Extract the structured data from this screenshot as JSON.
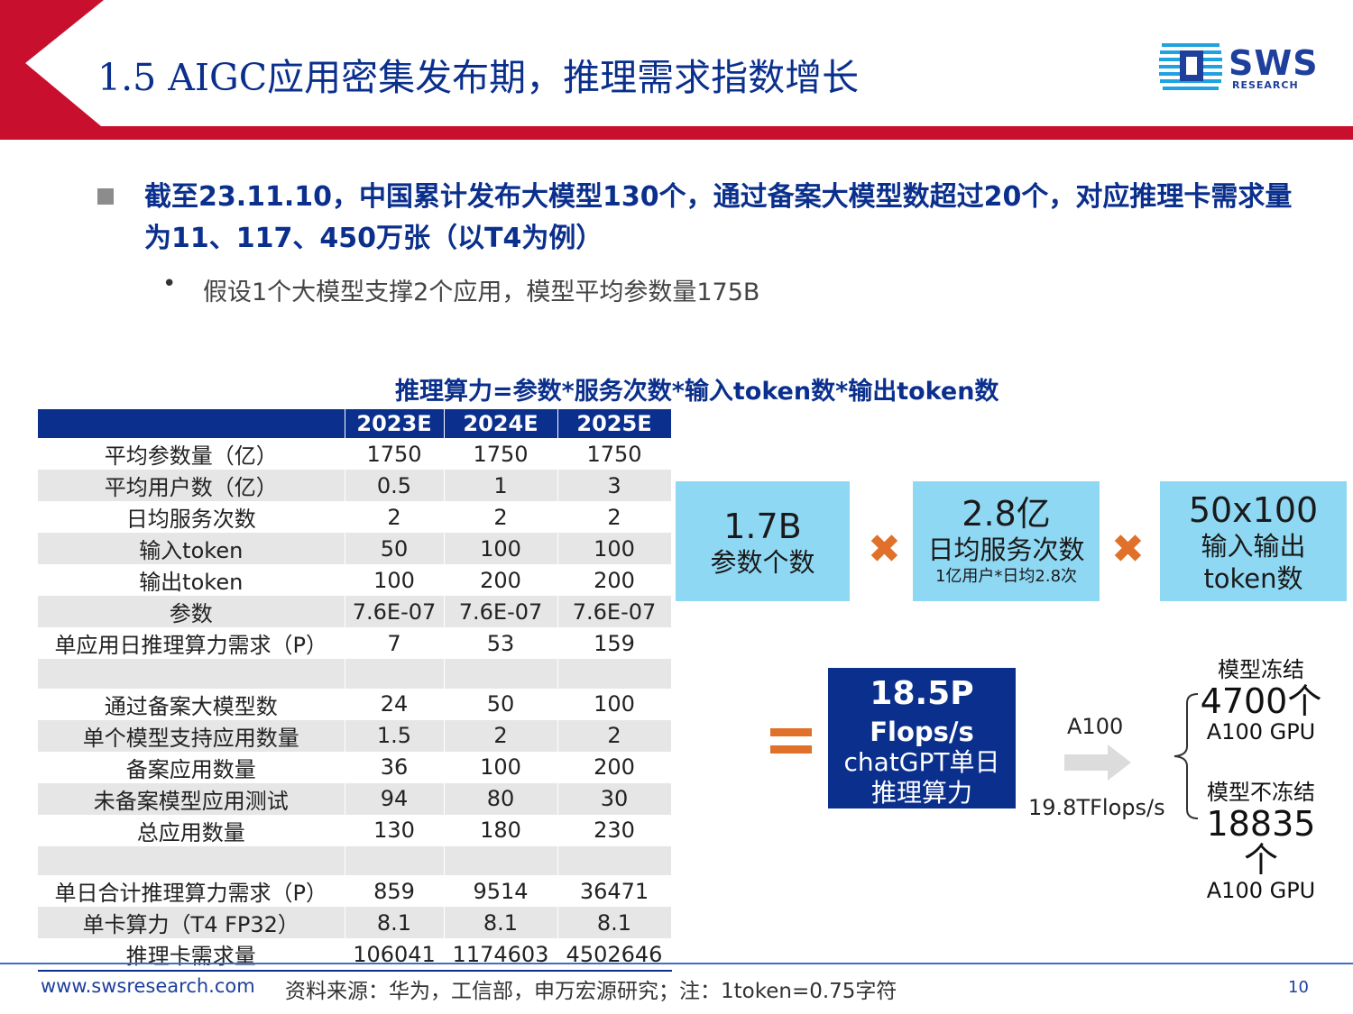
{
  "header": {
    "title": "1.5 AIGC应用密集发布期，推理需求指数增长",
    "logo_text": "SWS",
    "logo_sub": "RESEARCH"
  },
  "bullets": {
    "main": "截至23.11.10，中国累计发布大模型130个，通过备案大模型数超过20个，对应推理卡需求量为11、117、450万张（以T4为例）",
    "sub_dot": "•",
    "sub": "假设1个大模型支撑2个应用，模型平均参数量175B"
  },
  "formula": "推理算力=参数*服务次数*输入token数*输出token数",
  "table": {
    "columns": [
      "",
      "2023E",
      "2024E",
      "2025E"
    ],
    "rows": [
      [
        "平均参数量（亿）",
        "1750",
        "1750",
        "1750"
      ],
      [
        "平均用户数（亿）",
        "0.5",
        "1",
        "3"
      ],
      [
        "日均服务次数",
        "2",
        "2",
        "2"
      ],
      [
        "输入token",
        "50",
        "100",
        "100"
      ],
      [
        "输出token",
        "100",
        "200",
        "200"
      ],
      [
        "参数",
        "7.6E-07",
        "7.6E-07",
        "7.6E-07"
      ],
      [
        "单应用日推理算力需求（P）",
        "7",
        "53",
        "159"
      ],
      [
        "",
        "",
        "",
        ""
      ],
      [
        "通过备案大模型数",
        "24",
        "50",
        "100"
      ],
      [
        "单个模型支持应用数量",
        "1.5",
        "2",
        "2"
      ],
      [
        "备案应用数量",
        "36",
        "100",
        "200"
      ],
      [
        "未备案模型应用测试",
        "94",
        "80",
        "30"
      ],
      [
        "总应用数量",
        "130",
        "180",
        "230"
      ],
      [
        "",
        "",
        "",
        ""
      ],
      [
        "单日合计推理算力需求（P）",
        "859",
        "9514",
        "36471"
      ],
      [
        "单卡算力（T4  FP32）",
        "8.1",
        "8.1",
        "8.1"
      ],
      [
        "推理卡需求量",
        "106041",
        "1174603",
        "4502646"
      ]
    ]
  },
  "boxes": {
    "params": {
      "value": "1.7B",
      "label": "参数个数"
    },
    "service": {
      "value": "2.8亿",
      "label": "日均服务次数",
      "note": "1亿用户*日均2.8次"
    },
    "tokens": {
      "value": "50x100",
      "label1": "输入输出",
      "label2": "token数"
    }
  },
  "result": {
    "value": "18.5P",
    "unit": "Flops/s",
    "label1": "chatGPT单日",
    "label2": "推理算力"
  },
  "gpu": {
    "a100_label": "A100",
    "tflops": "19.8TFlops/s",
    "frozen": {
      "caption": "模型冻结",
      "count": "4700个",
      "unit": "A100 GPU"
    },
    "unfrozen": {
      "caption": "模型不冻结",
      "count": "18835个",
      "unit": "A100 GPU"
    }
  },
  "colors": {
    "navy": "#0a2f8c",
    "box_blue": "#8fd8f3",
    "orange": "#e0702a",
    "red": "#c8102e"
  },
  "footer": {
    "url": "www.swsresearch.com",
    "source": "资料来源：华为，工信部，申万宏源研究；注：1token=0.75字符",
    "page": "10"
  }
}
